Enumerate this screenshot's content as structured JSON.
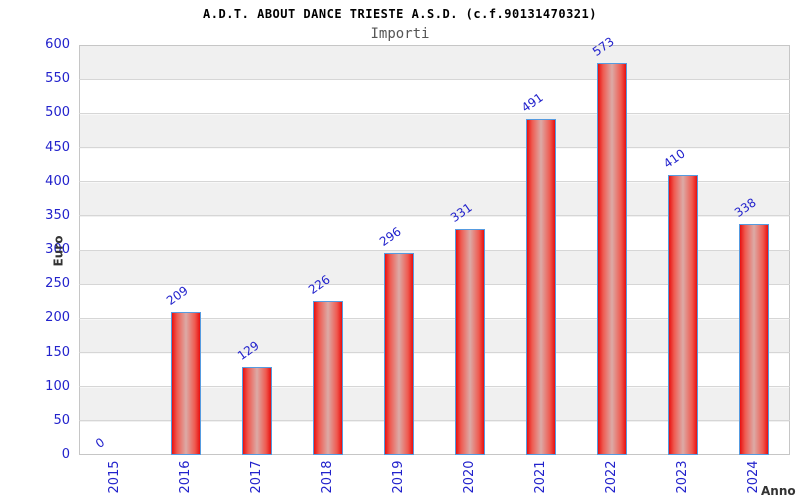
{
  "header": {
    "title": "A.D.T. ABOUT DANCE TRIESTE A.S.D. (c.f.90131470321)",
    "subtitle": "Importi"
  },
  "axes": {
    "y_label": "Euro",
    "x_label": "Anno",
    "y_ticks": [
      0,
      50,
      100,
      150,
      200,
      250,
      300,
      350,
      400,
      450,
      500,
      550,
      600
    ]
  },
  "chart_data": {
    "type": "bar",
    "title": "A.D.T. ABOUT DANCE TRIESTE A.S.D. (c.f.90131470321)",
    "subtitle": "Importi",
    "xlabel": "Anno",
    "ylabel": "Euro",
    "categories": [
      "2015",
      "2016",
      "2017",
      "2018",
      "2019",
      "2020",
      "2021",
      "2022",
      "2023",
      "2024"
    ],
    "values": [
      0,
      209,
      129,
      226,
      296,
      331,
      491,
      573,
      410,
      338
    ],
    "ylim": [
      0,
      600
    ],
    "ytick_step": 50,
    "grid": "horizontal-bands",
    "legend": "none",
    "bar_labels_shown": true,
    "bar_label_rotation_deg": -35,
    "xtick_rotation_deg": -90
  },
  "colors": {
    "tick_label": "#2222cc",
    "value_label": "#2222cc",
    "bar_border": "#559be0",
    "bar_fill_edge": "#e81010",
    "bar_fill_center": "#dcaaa6",
    "band_gray": "#f0f0f0",
    "band_white": "#ffffff",
    "gridline": "#d6d6d6",
    "plot_border": "#c6c6c6",
    "title_text": "#000000",
    "subtitle_text": "#555555",
    "axis_label_text": "#333333"
  }
}
